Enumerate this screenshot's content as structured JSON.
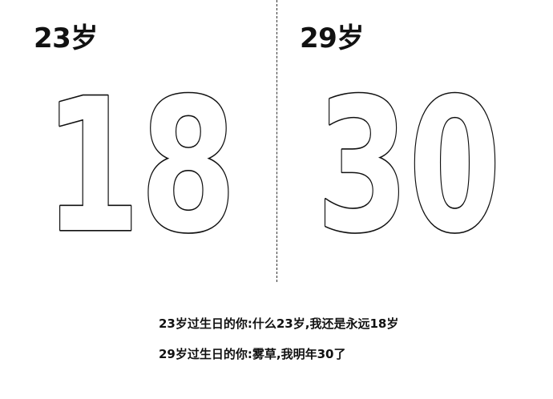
{
  "panels": {
    "left": {
      "label": "23岁",
      "number": "18"
    },
    "right": {
      "label": "29岁",
      "number": "30"
    }
  },
  "captions": [
    "23岁过生日的你:什么23岁,我还是永远18岁",
    "29岁过生日的你:雾草,我明年30了"
  ],
  "colors": {
    "background": "#ffffff",
    "ink": "#111111"
  }
}
